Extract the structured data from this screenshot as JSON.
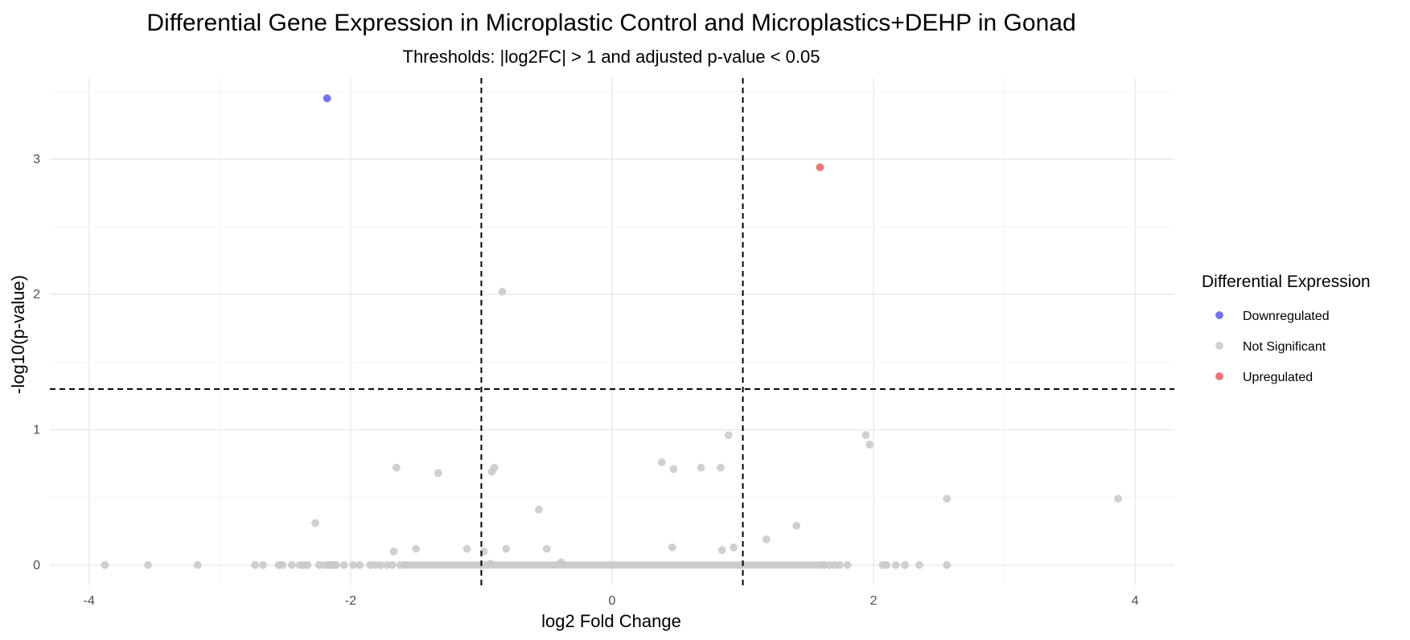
{
  "chart_data": {
    "type": "scatter",
    "title": "Differential Gene Expression in Microplastic Control and Microplastics+DEHP in Gonad",
    "subtitle": "Thresholds: |log2FC| > 1 and adjusted p-value < 0.05",
    "xlabel": "log2 Fold Change",
    "ylabel": "-log10(p-value)",
    "xlim": [
      -4.3,
      4.3
    ],
    "ylim": [
      -0.15,
      3.6
    ],
    "x_ticks": [
      -4,
      -2,
      0,
      2,
      4
    ],
    "y_ticks": [
      0,
      1,
      2,
      3
    ],
    "x_tick_labels": [
      "-4",
      "-2",
      "0",
      "2",
      "4"
    ],
    "y_tick_labels": [
      "0",
      "1",
      "2",
      "3"
    ],
    "grid": true,
    "reference_lines": {
      "vertical": [
        -1,
        1
      ],
      "horizontal": [
        1.301
      ],
      "style": "dashed"
    },
    "legend": {
      "title": "Differential Expression",
      "placement": "right",
      "entries": [
        {
          "label": "Downregulated",
          "color": "#5b5bf5"
        },
        {
          "label": "Not Significant",
          "color": "#c8c8c8"
        },
        {
          "label": "Upregulated",
          "color": "#f05a5a"
        }
      ]
    },
    "series": [
      {
        "name": "Downregulated",
        "color": "#5b5bf5",
        "points": [
          [
            -2.18,
            3.45
          ]
        ]
      },
      {
        "name": "Upregulated",
        "color": "#f05a5a",
        "points": [
          [
            1.59,
            2.94
          ]
        ]
      },
      {
        "name": "Not Significant",
        "color": "#c8c8c8",
        "points": [
          [
            -0.84,
            2.02
          ],
          [
            0.89,
            0.96
          ],
          [
            1.94,
            0.96
          ],
          [
            1.97,
            0.89
          ],
          [
            -1.65,
            0.72
          ],
          [
            -1.33,
            0.68
          ],
          [
            -0.92,
            0.69
          ],
          [
            -0.9,
            0.72
          ],
          [
            0.38,
            0.76
          ],
          [
            0.47,
            0.71
          ],
          [
            0.68,
            0.72
          ],
          [
            0.83,
            0.72
          ],
          [
            -0.56,
            0.41
          ],
          [
            2.56,
            0.49
          ],
          [
            3.87,
            0.49
          ],
          [
            -2.27,
            0.31
          ],
          [
            1.41,
            0.29
          ],
          [
            1.18,
            0.19
          ],
          [
            -1.67,
            0.1
          ],
          [
            -1.5,
            0.12
          ],
          [
            -1.11,
            0.12
          ],
          [
            -0.98,
            0.1
          ],
          [
            -0.81,
            0.12
          ],
          [
            -0.5,
            0.12
          ],
          [
            0.46,
            0.13
          ],
          [
            0.84,
            0.11
          ],
          [
            0.93,
            0.13
          ],
          [
            -0.39,
            0.02
          ],
          [
            -0.93,
            0.01
          ],
          [
            -3.88,
            0
          ],
          [
            -3.55,
            0
          ],
          [
            -3.17,
            0
          ],
          [
            -2.73,
            0
          ],
          [
            -2.67,
            0
          ],
          [
            -2.55,
            0
          ],
          [
            -2.52,
            0
          ],
          [
            -2.45,
            0
          ],
          [
            -2.39,
            0
          ],
          [
            -2.36,
            0
          ],
          [
            -2.33,
            0
          ],
          [
            -2.24,
            0
          ],
          [
            -2.2,
            0
          ],
          [
            -2.17,
            0
          ],
          [
            -2.15,
            0
          ],
          [
            -2.13,
            0
          ],
          [
            -2.11,
            0
          ],
          [
            -2.05,
            0
          ],
          [
            -1.98,
            0
          ],
          [
            -1.93,
            0
          ],
          [
            -1.85,
            0
          ],
          [
            -1.81,
            0
          ],
          [
            -1.77,
            0
          ],
          [
            -1.72,
            0
          ],
          [
            -1.68,
            0
          ],
          [
            -1.62,
            0
          ],
          [
            -1.58,
            0
          ],
          [
            1.62,
            0
          ],
          [
            1.66,
            0
          ],
          [
            1.7,
            0
          ],
          [
            1.74,
            0
          ],
          [
            1.8,
            0
          ],
          [
            2.07,
            0
          ],
          [
            2.1,
            0
          ],
          [
            2.17,
            0
          ],
          [
            2.24,
            0
          ],
          [
            2.35,
            0
          ],
          [
            2.56,
            0
          ]
        ]
      }
    ],
    "dense_band": {
      "label": "Not Significant",
      "x_range": [
        -1.58,
        1.62
      ],
      "y": 0
    }
  }
}
